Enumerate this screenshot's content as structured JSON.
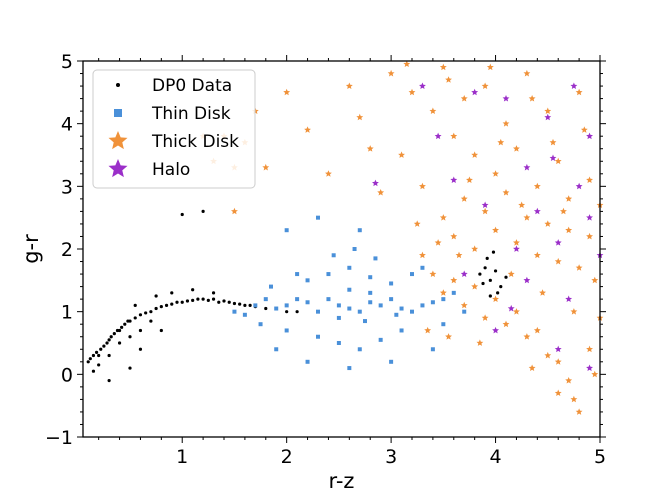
{
  "chart_data": {
    "type": "scatter",
    "xlabel": "r-z",
    "ylabel": "g-r",
    "xlim": [
      0.05,
      5.0
    ],
    "ylim": [
      -1,
      5
    ],
    "x_ticks": [
      1,
      2,
      3,
      4,
      5
    ],
    "y_ticks": [
      -1,
      0,
      1,
      2,
      3,
      4,
      5
    ],
    "x_tick_labels": [
      "1",
      "2",
      "3",
      "4",
      "5"
    ],
    "y_tick_labels": [
      "−1",
      "0",
      "1",
      "2",
      "3",
      "4",
      "5"
    ],
    "legend_position": "top-left",
    "grid": false,
    "minor_ticks": true,
    "series": [
      {
        "name": "DP0 Data",
        "marker": "point",
        "color": "#000000",
        "points": [
          [
            0.1,
            0.2
          ],
          [
            0.12,
            0.25
          ],
          [
            0.15,
            0.3
          ],
          [
            0.18,
            0.35
          ],
          [
            0.2,
            0.3
          ],
          [
            0.22,
            0.4
          ],
          [
            0.25,
            0.45
          ],
          [
            0.28,
            0.5
          ],
          [
            0.3,
            0.55
          ],
          [
            0.32,
            0.6
          ],
          [
            0.35,
            0.65
          ],
          [
            0.38,
            0.7
          ],
          [
            0.4,
            0.7
          ],
          [
            0.42,
            0.75
          ],
          [
            0.45,
            0.8
          ],
          [
            0.48,
            0.85
          ],
          [
            0.5,
            0.85
          ],
          [
            0.55,
            0.9
          ],
          [
            0.6,
            0.95
          ],
          [
            0.65,
            0.98
          ],
          [
            0.7,
            1.0
          ],
          [
            0.75,
            1.05
          ],
          [
            0.8,
            1.08
          ],
          [
            0.85,
            1.1
          ],
          [
            0.9,
            1.12
          ],
          [
            0.95,
            1.15
          ],
          [
            1.0,
            1.15
          ],
          [
            1.05,
            1.17
          ],
          [
            1.1,
            1.18
          ],
          [
            1.15,
            1.2
          ],
          [
            1.2,
            1.2
          ],
          [
            1.25,
            1.18
          ],
          [
            1.3,
            1.2
          ],
          [
            1.35,
            1.15
          ],
          [
            1.4,
            1.17
          ],
          [
            1.45,
            1.15
          ],
          [
            1.5,
            1.13
          ],
          [
            1.55,
            1.12
          ],
          [
            1.6,
            1.1
          ],
          [
            1.65,
            1.1
          ],
          [
            1.7,
            1.08
          ],
          [
            1.8,
            1.05
          ],
          [
            1.9,
            1.05
          ],
          [
            2.0,
            1.0
          ],
          [
            2.1,
            1.0
          ],
          [
            0.2,
            0.15
          ],
          [
            0.3,
            0.3
          ],
          [
            0.4,
            0.5
          ],
          [
            0.5,
            0.6
          ],
          [
            0.6,
            0.7
          ],
          [
            0.7,
            0.85
          ],
          [
            0.55,
            1.1
          ],
          [
            0.75,
            1.25
          ],
          [
            0.9,
            1.3
          ],
          [
            1.1,
            1.35
          ],
          [
            1.3,
            1.3
          ],
          [
            0.3,
            -0.1
          ],
          [
            0.5,
            0.1
          ],
          [
            0.6,
            0.4
          ],
          [
            0.8,
            0.7
          ],
          [
            0.15,
            0.05
          ],
          [
            1.2,
            2.6
          ],
          [
            1.0,
            2.55
          ],
          [
            3.85,
            1.6
          ],
          [
            3.9,
            1.7
          ],
          [
            3.95,
            1.5
          ],
          [
            4.0,
            1.65
          ],
          [
            4.05,
            1.4
          ],
          [
            3.92,
            1.85
          ],
          [
            3.98,
            1.95
          ],
          [
            4.02,
            1.3
          ],
          [
            3.88,
            1.45
          ],
          [
            4.1,
            1.55
          ],
          [
            3.95,
            1.25
          ]
        ]
      },
      {
        "name": "Thin Disk",
        "marker": "square",
        "color": "#4a90d9",
        "points": [
          [
            1.5,
            1.0
          ],
          [
            1.6,
            0.95
          ],
          [
            1.7,
            1.1
          ],
          [
            1.8,
            1.2
          ],
          [
            1.9,
            1.05
          ],
          [
            2.0,
            1.1
          ],
          [
            2.1,
            1.2
          ],
          [
            2.2,
            1.15
          ],
          [
            2.3,
            1.0
          ],
          [
            2.4,
            1.2
          ],
          [
            2.5,
            1.1
          ],
          [
            2.6,
            1.05
          ],
          [
            2.7,
            1.0
          ],
          [
            2.8,
            1.15
          ],
          [
            2.9,
            1.1
          ],
          [
            3.0,
            1.2
          ],
          [
            3.1,
            1.05
          ],
          [
            3.2,
            1.0
          ],
          [
            3.3,
            1.1
          ],
          [
            3.4,
            1.15
          ],
          [
            3.5,
            1.2
          ],
          [
            2.2,
            1.5
          ],
          [
            2.4,
            1.6
          ],
          [
            2.6,
            1.7
          ],
          [
            2.8,
            1.55
          ],
          [
            3.0,
            1.45
          ],
          [
            3.2,
            1.6
          ],
          [
            2.3,
            0.6
          ],
          [
            2.5,
            0.5
          ],
          [
            2.7,
            0.4
          ],
          [
            2.9,
            0.55
          ],
          [
            3.1,
            0.7
          ],
          [
            2.0,
            0.7
          ],
          [
            2.1,
            1.6
          ],
          [
            2.45,
            1.9
          ],
          [
            2.65,
            2.0
          ],
          [
            2.85,
            1.85
          ],
          [
            3.3,
            1.7
          ],
          [
            3.5,
            0.8
          ],
          [
            3.6,
            1.3
          ],
          [
            3.7,
            1.0
          ],
          [
            1.9,
            0.4
          ],
          [
            2.2,
            0.2
          ],
          [
            2.6,
            0.1
          ],
          [
            3.0,
            0.2
          ],
          [
            3.4,
            0.4
          ],
          [
            2.7,
            2.3
          ],
          [
            2.0,
            2.3
          ],
          [
            2.3,
            2.5
          ],
          [
            2.8,
            1.3
          ],
          [
            2.6,
            1.35
          ],
          [
            2.5,
            0.9
          ],
          [
            2.75,
            0.85
          ],
          [
            3.05,
            0.95
          ],
          [
            1.75,
            0.8
          ],
          [
            1.85,
            1.4
          ]
        ]
      },
      {
        "name": "Thick Disk",
        "marker": "star",
        "color": "#f0923a",
        "points": [
          [
            3.0,
            4.8
          ],
          [
            3.2,
            4.5
          ],
          [
            3.4,
            4.2
          ],
          [
            3.5,
            4.9
          ],
          [
            3.6,
            3.8
          ],
          [
            3.7,
            4.4
          ],
          [
            3.8,
            3.5
          ],
          [
            3.9,
            4.6
          ],
          [
            4.0,
            3.2
          ],
          [
            4.1,
            4.0
          ],
          [
            4.2,
            3.6
          ],
          [
            4.3,
            4.8
          ],
          [
            4.4,
            3.0
          ],
          [
            4.5,
            4.2
          ],
          [
            4.6,
            3.4
          ],
          [
            4.7,
            2.8
          ],
          [
            4.8,
            4.5
          ],
          [
            4.9,
            3.1
          ],
          [
            5.0,
            2.7
          ],
          [
            3.5,
            2.5
          ],
          [
            3.6,
            2.2
          ],
          [
            3.7,
            2.8
          ],
          [
            3.8,
            2.0
          ],
          [
            3.9,
            2.6
          ],
          [
            4.0,
            2.3
          ],
          [
            4.1,
            2.9
          ],
          [
            4.2,
            2.1
          ],
          [
            4.3,
            2.5
          ],
          [
            4.4,
            1.9
          ],
          [
            4.5,
            2.4
          ],
          [
            4.6,
            1.8
          ],
          [
            4.7,
            2.3
          ],
          [
            4.8,
            1.7
          ],
          [
            4.9,
            2.2
          ],
          [
            3.3,
            1.9
          ],
          [
            3.4,
            1.6
          ],
          [
            3.5,
            1.3
          ],
          [
            3.6,
            1.5
          ],
          [
            3.7,
            1.1
          ],
          [
            3.8,
            1.4
          ],
          [
            3.9,
            0.9
          ],
          [
            4.0,
            1.2
          ],
          [
            4.1,
            0.8
          ],
          [
            4.2,
            1.0
          ],
          [
            4.3,
            0.6
          ],
          [
            4.4,
            0.7
          ],
          [
            4.5,
            0.3
          ],
          [
            4.6,
            0.2
          ],
          [
            4.7,
            -0.1
          ],
          [
            4.6,
            -0.3
          ],
          [
            4.8,
            -0.6
          ],
          [
            4.75,
            -0.4
          ],
          [
            4.9,
            0.4
          ],
          [
            5.0,
            0.9
          ],
          [
            3.1,
            3.5
          ],
          [
            3.3,
            3.0
          ],
          [
            2.9,
            2.9
          ],
          [
            2.8,
            3.6
          ],
          [
            2.7,
            4.1
          ],
          [
            2.6,
            4.6
          ],
          [
            2.0,
            4.5
          ],
          [
            1.7,
            4.2
          ],
          [
            1.6,
            3.7
          ],
          [
            1.5,
            3.3
          ],
          [
            1.4,
            3.8
          ],
          [
            1.2,
            3.8
          ],
          [
            1.3,
            3.4
          ],
          [
            1.8,
            3.3
          ],
          [
            1.5,
            2.6
          ],
          [
            2.2,
            3.9
          ],
          [
            2.4,
            3.2
          ],
          [
            3.15,
            4.95
          ],
          [
            3.55,
            4.7
          ],
          [
            3.95,
            4.9
          ],
          [
            4.35,
            4.4
          ],
          [
            4.55,
            3.7
          ],
          [
            4.85,
            3.9
          ],
          [
            4.05,
            3.7
          ],
          [
            3.75,
            3.1
          ],
          [
            4.25,
            2.7
          ],
          [
            4.65,
            2.6
          ],
          [
            4.95,
            1.5
          ],
          [
            3.45,
            2.1
          ],
          [
            3.25,
            2.4
          ],
          [
            3.65,
            1.9
          ],
          [
            4.15,
            1.6
          ],
          [
            4.45,
            1.3
          ],
          [
            4.75,
            1.0
          ],
          [
            4.95,
            0.0
          ],
          [
            3.85,
            0.5
          ],
          [
            4.35,
            0.1
          ],
          [
            3.55,
            0.6
          ],
          [
            3.35,
            0.7
          ]
        ]
      },
      {
        "name": "Halo",
        "marker": "star",
        "color": "#9b2fc9",
        "points": [
          [
            3.3,
            4.6
          ],
          [
            3.8,
            4.5
          ],
          [
            4.1,
            4.4
          ],
          [
            4.5,
            4.1
          ],
          [
            4.9,
            3.8
          ],
          [
            3.6,
            3.1
          ],
          [
            4.3,
            3.3
          ],
          [
            4.8,
            3.0
          ],
          [
            3.9,
            2.7
          ],
          [
            4.4,
            2.6
          ],
          [
            4.9,
            2.5
          ],
          [
            4.2,
            2.0
          ],
          [
            4.6,
            2.1
          ],
          [
            5.0,
            1.9
          ],
          [
            3.7,
            1.6
          ],
          [
            4.3,
            1.5
          ],
          [
            4.7,
            1.2
          ],
          [
            4.0,
            0.7
          ],
          [
            4.6,
            0.4
          ],
          [
            4.9,
            0.1
          ],
          [
            3.45,
            3.8
          ],
          [
            2.85,
            3.05
          ],
          [
            4.75,
            4.6
          ],
          [
            4.55,
            3.45
          ],
          [
            4.15,
            1.05
          ]
        ]
      }
    ]
  }
}
